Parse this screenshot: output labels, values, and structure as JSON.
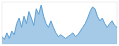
{
  "chart_data": {
    "type": "area",
    "values": [
      8,
      5,
      12,
      6,
      14,
      10,
      22,
      28,
      18,
      30,
      22,
      35,
      28,
      20,
      38,
      32,
      42,
      30,
      22,
      18,
      25,
      18,
      12,
      8,
      10,
      8,
      6,
      8,
      10,
      12,
      8,
      10,
      14,
      18,
      22,
      28,
      35,
      40,
      38,
      30,
      25,
      28,
      22,
      18,
      22,
      25,
      20,
      18
    ],
    "color": "#5b9fd4",
    "xlim": [
      0,
      47
    ],
    "ylim": [
      0,
      45.36
    ],
    "grid": false,
    "tick_labels": false
  }
}
